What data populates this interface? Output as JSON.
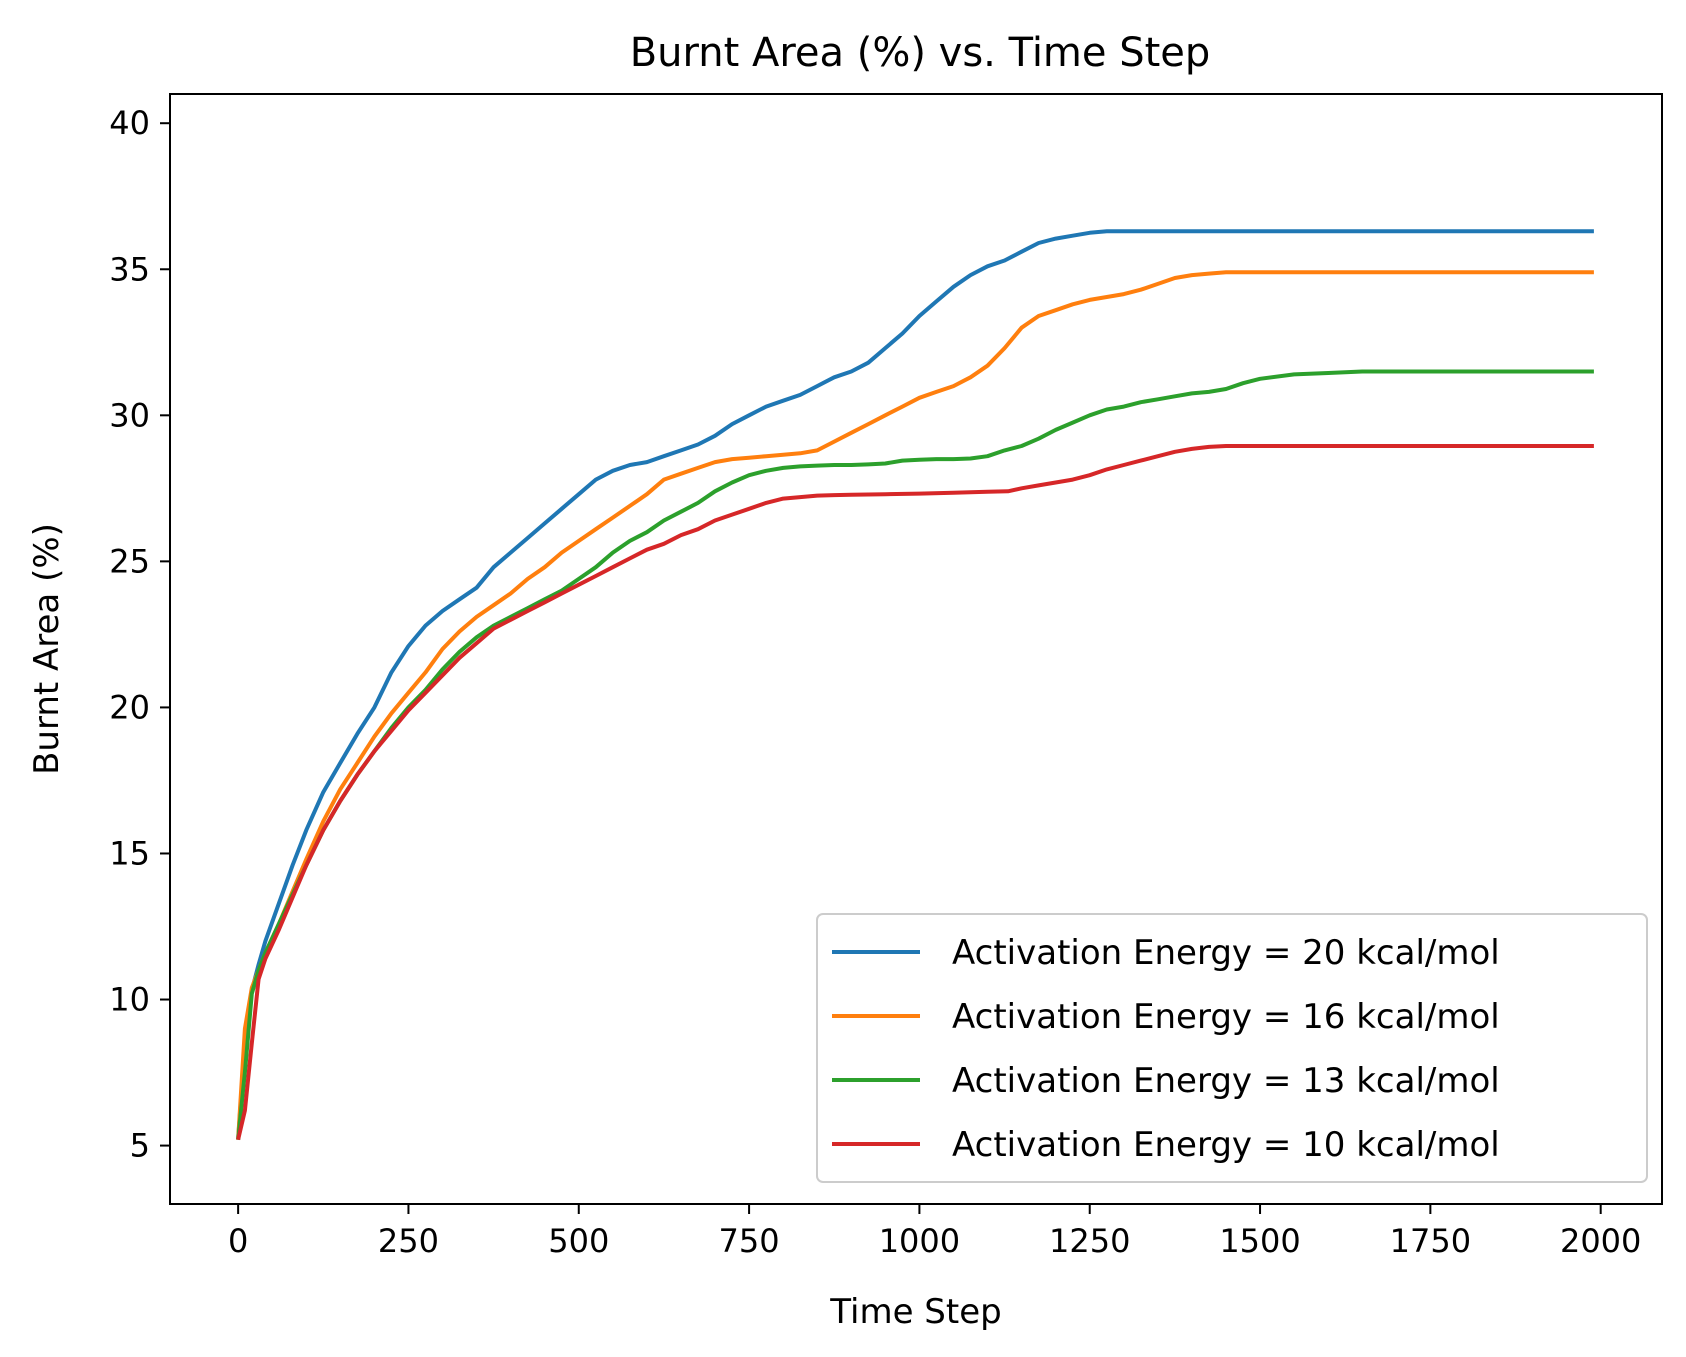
{
  "chart_data": {
    "type": "line",
    "title": "Burnt Area (%) vs. Time Step",
    "xlabel": "Time Step",
    "ylabel": "Burnt Area (%)",
    "xlim": [
      -100,
      2090
    ],
    "ylim": [
      3,
      41
    ],
    "xticks": [
      0,
      250,
      500,
      750,
      1000,
      1250,
      1500,
      1750,
      2000
    ],
    "xtick_labels": [
      "0",
      "250",
      "500",
      "750",
      "1000",
      "1250",
      "1500",
      "1750",
      "2000"
    ],
    "yticks": [
      5,
      10,
      15,
      20,
      25,
      30,
      35,
      40
    ],
    "ytick_labels": [
      "5",
      "10",
      "15",
      "20",
      "25",
      "30",
      "35",
      "40"
    ],
    "grid": false,
    "legend_position": "lower-right",
    "series": [
      {
        "name": "Activation Energy  = 20 kcal/mol",
        "color": "#1f77b4",
        "x": [
          0,
          10,
          20,
          30,
          40,
          60,
          80,
          100,
          125,
          150,
          175,
          200,
          225,
          250,
          275,
          300,
          325,
          350,
          375,
          400,
          425,
          450,
          475,
          500,
          525,
          550,
          575,
          600,
          625,
          650,
          675,
          700,
          725,
          750,
          775,
          800,
          825,
          850,
          875,
          900,
          925,
          950,
          975,
          1000,
          1025,
          1050,
          1075,
          1100,
          1125,
          1150,
          1175,
          1200,
          1225,
          1250,
          1275,
          1300,
          1350,
          1400,
          1500,
          1600,
          1700,
          1800,
          1900,
          1990
        ],
        "y": [
          5.2,
          8.5,
          10.3,
          11.2,
          12.0,
          13.3,
          14.6,
          15.8,
          17.1,
          18.1,
          19.1,
          20.0,
          21.2,
          22.1,
          22.8,
          23.3,
          23.7,
          24.1,
          24.8,
          25.3,
          25.8,
          26.3,
          26.8,
          27.3,
          27.8,
          28.1,
          28.3,
          28.4,
          28.6,
          28.8,
          29.0,
          29.3,
          29.7,
          30.0,
          30.3,
          30.5,
          30.7,
          31.0,
          31.3,
          31.5,
          31.8,
          32.3,
          32.8,
          33.4,
          33.9,
          34.4,
          34.8,
          35.1,
          35.3,
          35.6,
          35.9,
          36.05,
          36.15,
          36.25,
          36.3,
          36.3,
          36.3,
          36.3,
          36.3,
          36.3,
          36.3,
          36.3,
          36.3,
          36.3
        ]
      },
      {
        "name": "Activation Energy  = 16 kcal/mol",
        "color": "#ff7f0e",
        "x": [
          0,
          10,
          20,
          30,
          40,
          60,
          80,
          100,
          125,
          150,
          175,
          200,
          225,
          250,
          275,
          300,
          325,
          350,
          375,
          400,
          425,
          450,
          475,
          500,
          525,
          550,
          575,
          600,
          625,
          650,
          675,
          700,
          725,
          750,
          775,
          800,
          825,
          850,
          875,
          900,
          925,
          950,
          975,
          1000,
          1025,
          1050,
          1075,
          1100,
          1125,
          1150,
          1175,
          1200,
          1225,
          1250,
          1275,
          1300,
          1325,
          1350,
          1375,
          1400,
          1425,
          1450,
          1475,
          1500,
          1600,
          1700,
          1800,
          1900,
          1990
        ],
        "y": [
          5.2,
          9.0,
          10.4,
          11.0,
          11.6,
          12.6,
          13.7,
          14.8,
          16.1,
          17.2,
          18.1,
          19.0,
          19.8,
          20.5,
          21.2,
          22.0,
          22.6,
          23.1,
          23.5,
          23.9,
          24.4,
          24.8,
          25.3,
          25.7,
          26.1,
          26.5,
          26.9,
          27.3,
          27.8,
          28.0,
          28.2,
          28.4,
          28.5,
          28.55,
          28.6,
          28.65,
          28.7,
          28.8,
          29.1,
          29.4,
          29.7,
          30.0,
          30.3,
          30.6,
          30.8,
          31.0,
          31.3,
          31.7,
          32.3,
          33.0,
          33.4,
          33.6,
          33.8,
          33.95,
          34.05,
          34.15,
          34.3,
          34.5,
          34.7,
          34.8,
          34.85,
          34.9,
          34.9,
          34.9,
          34.9,
          34.9,
          34.9,
          34.9,
          34.9
        ]
      },
      {
        "name": "Activation Energy  = 13 kcal/mol",
        "color": "#2ca02c",
        "x": [
          0,
          10,
          20,
          30,
          40,
          60,
          80,
          100,
          125,
          150,
          175,
          200,
          225,
          250,
          275,
          300,
          325,
          350,
          375,
          400,
          425,
          450,
          475,
          500,
          525,
          550,
          575,
          600,
          625,
          650,
          675,
          700,
          725,
          750,
          775,
          800,
          825,
          850,
          875,
          900,
          925,
          950,
          975,
          1000,
          1025,
          1050,
          1075,
          1100,
          1125,
          1150,
          1175,
          1200,
          1225,
          1250,
          1275,
          1300,
          1325,
          1350,
          1375,
          1400,
          1425,
          1450,
          1475,
          1500,
          1550,
          1600,
          1650,
          1700,
          1800,
          1900,
          1990
        ],
        "y": [
          5.2,
          7.5,
          10.2,
          11.0,
          11.6,
          12.6,
          13.6,
          14.6,
          15.8,
          16.8,
          17.7,
          18.5,
          19.3,
          20.0,
          20.6,
          21.3,
          21.9,
          22.4,
          22.8,
          23.1,
          23.4,
          23.7,
          24.0,
          24.4,
          24.8,
          25.3,
          25.7,
          26.0,
          26.4,
          26.7,
          27.0,
          27.4,
          27.7,
          27.95,
          28.1,
          28.2,
          28.25,
          28.28,
          28.3,
          28.3,
          28.32,
          28.35,
          28.45,
          28.48,
          28.5,
          28.5,
          28.52,
          28.6,
          28.8,
          28.95,
          29.2,
          29.5,
          29.75,
          30.0,
          30.2,
          30.3,
          30.45,
          30.55,
          30.65,
          30.75,
          30.8,
          30.9,
          31.1,
          31.25,
          31.4,
          31.45,
          31.5,
          31.5,
          31.5,
          31.5,
          31.5
        ]
      },
      {
        "name": "Activation Energy  = 10 kcal/mol",
        "color": "#d62728",
        "x": [
          0,
          10,
          20,
          30,
          40,
          60,
          80,
          100,
          125,
          150,
          175,
          200,
          225,
          250,
          275,
          300,
          325,
          350,
          375,
          400,
          425,
          450,
          475,
          500,
          525,
          550,
          575,
          600,
          625,
          650,
          675,
          700,
          725,
          750,
          775,
          800,
          825,
          850,
          875,
          900,
          950,
          1000,
          1050,
          1100,
          1130,
          1150,
          1175,
          1200,
          1225,
          1250,
          1275,
          1300,
          1325,
          1350,
          1375,
          1400,
          1425,
          1450,
          1500,
          1600,
          1700,
          1800,
          1900,
          1990
        ],
        "y": [
          5.2,
          6.2,
          8.5,
          10.7,
          11.4,
          12.4,
          13.5,
          14.6,
          15.8,
          16.8,
          17.7,
          18.5,
          19.2,
          19.9,
          20.5,
          21.1,
          21.7,
          22.2,
          22.7,
          23.0,
          23.3,
          23.6,
          23.9,
          24.2,
          24.5,
          24.8,
          25.1,
          25.4,
          25.6,
          25.9,
          26.1,
          26.4,
          26.6,
          26.8,
          27.0,
          27.15,
          27.2,
          27.25,
          27.27,
          27.28,
          27.3,
          27.32,
          27.35,
          27.38,
          27.4,
          27.5,
          27.6,
          27.7,
          27.8,
          27.95,
          28.15,
          28.3,
          28.45,
          28.6,
          28.75,
          28.85,
          28.92,
          28.95,
          28.95,
          28.95,
          28.95,
          28.95,
          28.95,
          28.95
        ]
      }
    ]
  }
}
